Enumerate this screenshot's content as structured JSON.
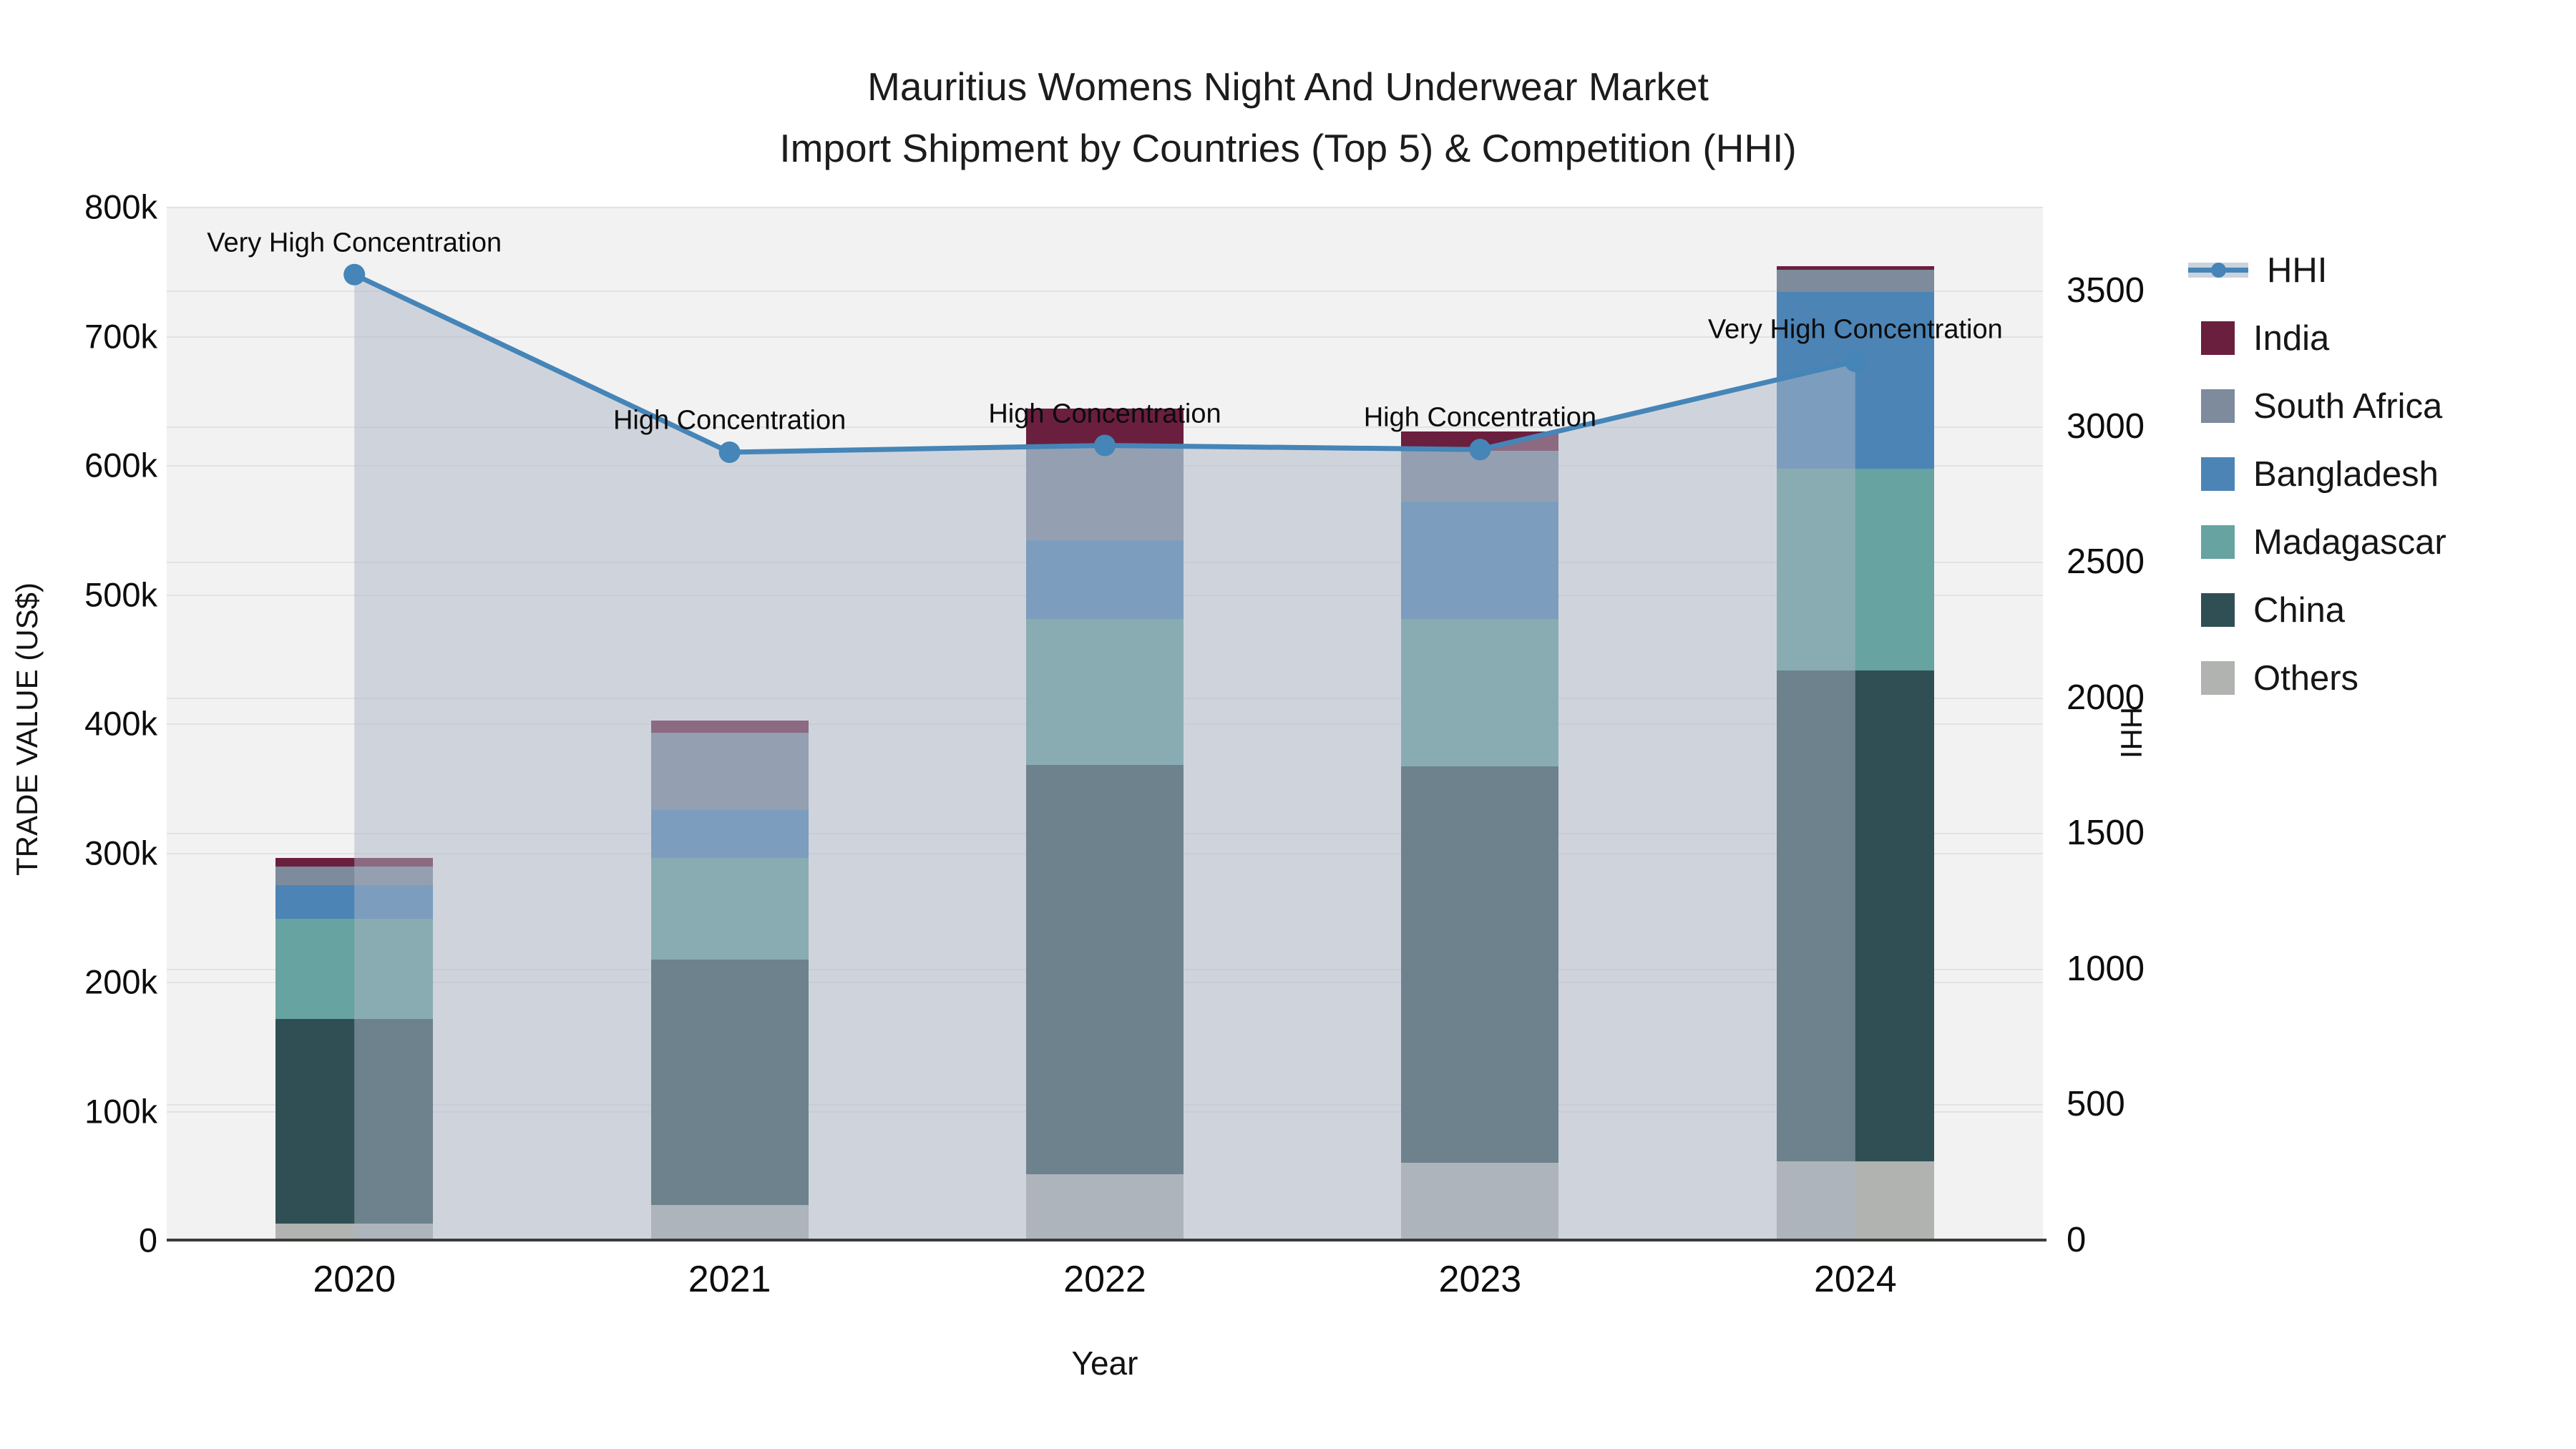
{
  "title": {
    "line1": "Mauritius Womens Night And Underwear Market",
    "line2": "Import Shipment by Countries (Top 5) & Competition (HHI)"
  },
  "axes": {
    "y_left": {
      "title": "TRADE VALUE (US$)",
      "tick_labels": [
        "0",
        "100k",
        "200k",
        "300k",
        "400k",
        "500k",
        "600k",
        "700k",
        "800k"
      ],
      "range_usd": [
        0,
        800000
      ]
    },
    "y_right": {
      "title": "HHI",
      "tick_labels": [
        "0",
        "500",
        "1000",
        "1500",
        "2000",
        "2500",
        "3000",
        "3500"
      ],
      "tick_step": 500,
      "range": [
        0,
        3810
      ]
    },
    "x": {
      "title": "Year",
      "categories": [
        "2020",
        "2021",
        "2022",
        "2023",
        "2024"
      ]
    }
  },
  "legend": {
    "items": [
      {
        "label": "HHI",
        "type": "line",
        "color": "#4585b8"
      },
      {
        "label": "India",
        "type": "swatch",
        "color": "#6b1f3e"
      },
      {
        "label": "South Africa",
        "type": "swatch",
        "color": "#7d8b9c"
      },
      {
        "label": "Bangladesh",
        "type": "swatch",
        "color": "#4c84b6"
      },
      {
        "label": "Madagascar",
        "type": "swatch",
        "color": "#67a3a0"
      },
      {
        "label": "China",
        "type": "swatch",
        "color": "#2f4f55"
      },
      {
        "label": "Others",
        "type": "swatch",
        "color": "#b0b3b0"
      }
    ]
  },
  "chart_data": {
    "type": "bar+line",
    "categories": [
      "2020",
      "2021",
      "2022",
      "2023",
      "2024"
    ],
    "bar_stack_order_bottom_to_top": [
      "Others",
      "China",
      "Madagascar",
      "Bangladesh",
      "South Africa",
      "India"
    ],
    "series": [
      {
        "name": "Others",
        "color": "#b0b3b0",
        "values_usd": [
          13000,
          27000,
          51000,
          60000,
          61000
        ]
      },
      {
        "name": "China",
        "color": "#2f4f55",
        "values_usd": [
          158000,
          190000,
          317000,
          307000,
          380000
        ]
      },
      {
        "name": "Madagascar",
        "color": "#67a3a0",
        "values_usd": [
          78000,
          79000,
          113000,
          114000,
          156000
        ]
      },
      {
        "name": "Bangladesh",
        "color": "#4c84b6",
        "values_usd": [
          26000,
          37000,
          61000,
          91000,
          137000
        ]
      },
      {
        "name": "South Africa",
        "color": "#7d8b9c",
        "values_usd": [
          14000,
          60000,
          72000,
          39000,
          17000
        ]
      },
      {
        "name": "India",
        "color": "#6b1f3e",
        "values_usd": [
          7000,
          9000,
          30000,
          15000,
          3000
        ]
      }
    ],
    "totals_usd": [
      296000,
      402000,
      644000,
      626000,
      754000
    ],
    "hhi": {
      "name": "HHI",
      "values": [
        3560,
        2905,
        2930,
        2915,
        3240
      ],
      "line_color": "#4585b8",
      "area_fill": "rgba(172,181,197,0.5)"
    },
    "annotations": [
      {
        "year": "2020",
        "label": "Very High Concentration"
      },
      {
        "year": "2021",
        "label": "High Concentration"
      },
      {
        "year": "2022",
        "label": "High Concentration"
      },
      {
        "year": "2023",
        "label": "High Concentration"
      },
      {
        "year": "2024",
        "label": "Very High Concentration"
      }
    ],
    "ylabel_left": "TRADE VALUE (US$)",
    "ylabel_right": "HHI",
    "xlabel": "Year",
    "grid": true,
    "legend_position": "right",
    "plot_background": "#f2f2f2"
  }
}
